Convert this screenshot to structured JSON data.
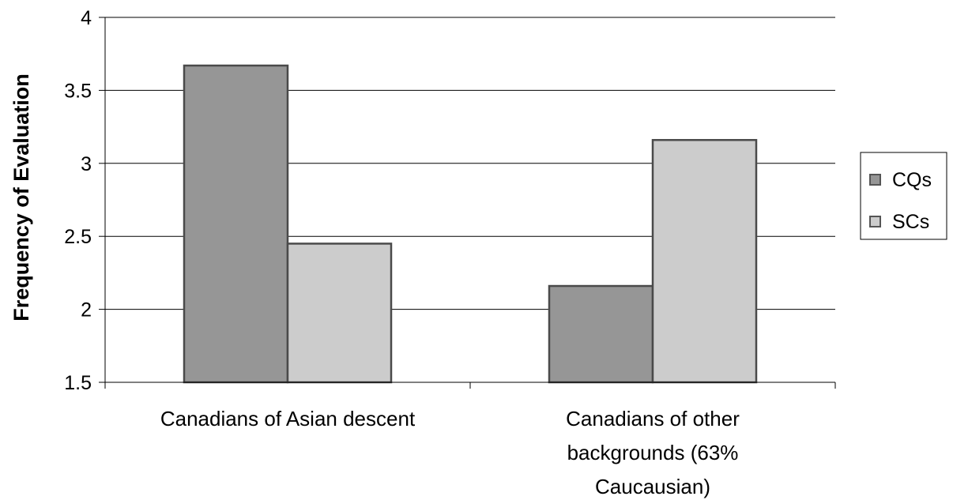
{
  "chart_data": {
    "type": "bar",
    "title": "",
    "xlabel": "",
    "ylabel": "Frequency of Evaluation",
    "ylim": [
      1.5,
      4
    ],
    "yticks": [
      "1.5",
      "2",
      "2.5",
      "3",
      "3.5",
      "4"
    ],
    "grid": true,
    "legend_position": "right",
    "categories": [
      [
        "Canadians of Asian descent"
      ],
      [
        "Canadians of other",
        "backgrounds (63%",
        "Caucausian)"
      ]
    ],
    "series": [
      {
        "name": "CQs",
        "values": [
          3.67,
          2.16
        ],
        "color": "#969696"
      },
      {
        "name": "SCs",
        "values": [
          2.45,
          3.16
        ],
        "color": "#cccccc"
      }
    ]
  }
}
